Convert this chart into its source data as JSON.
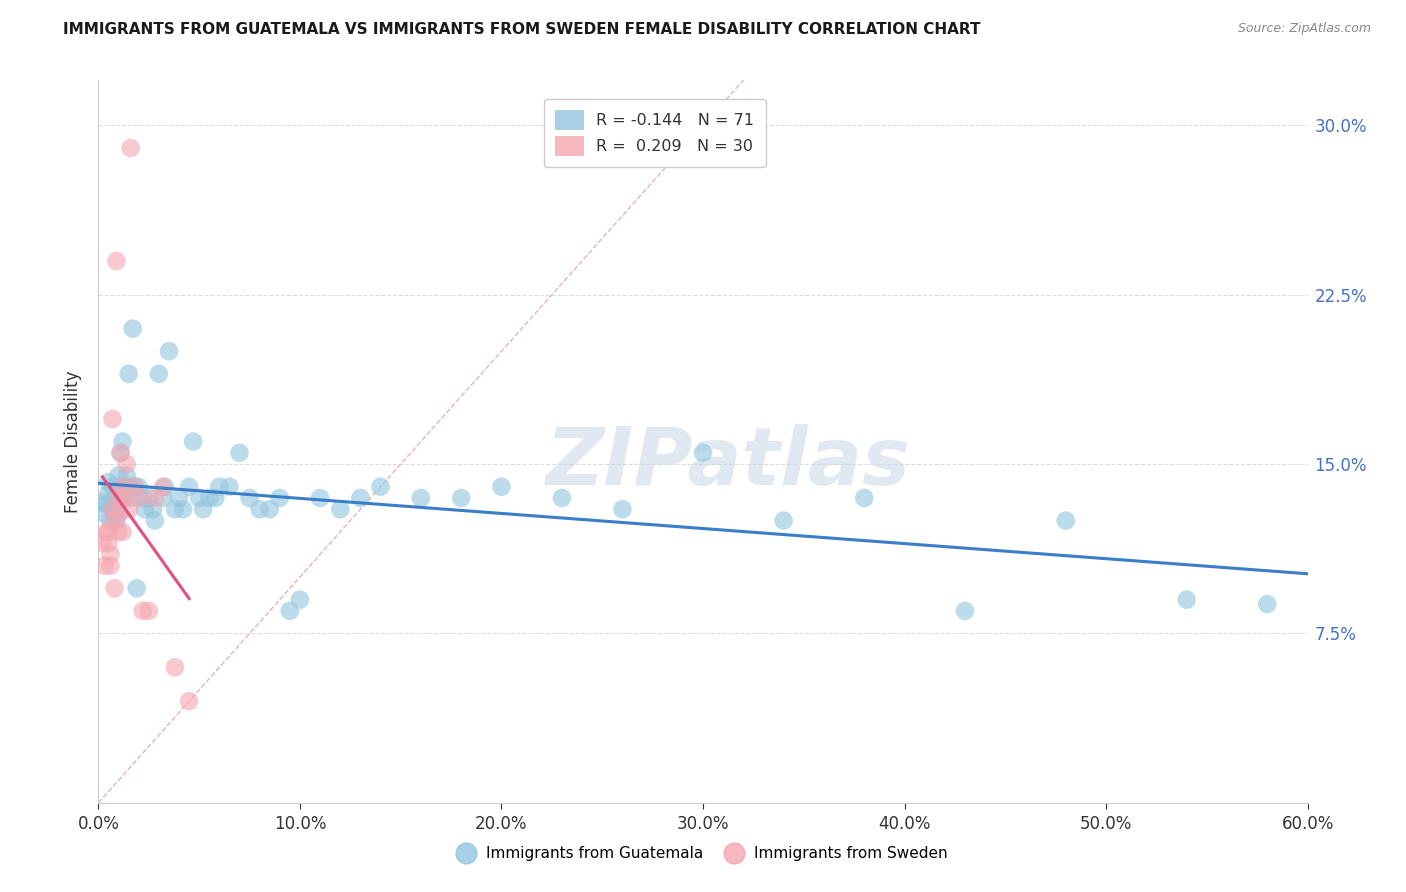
{
  "title": "IMMIGRANTS FROM GUATEMALA VS IMMIGRANTS FROM SWEDEN FEMALE DISABILITY CORRELATION CHART",
  "source": "Source: ZipAtlas.com",
  "ylabel": "Female Disability",
  "watermark": "ZIPatlas",
  "xlim": [
    0.0,
    0.6
  ],
  "ylim": [
    0.0,
    0.32
  ],
  "xticks": [
    0.0,
    0.1,
    0.2,
    0.3,
    0.4,
    0.5,
    0.6
  ],
  "yticks": [
    0.075,
    0.15,
    0.225,
    0.3
  ],
  "ytick_labels": [
    "7.5%",
    "15.0%",
    "22.5%",
    "30.0%"
  ],
  "xtick_labels": [
    "0.0%",
    "10.0%",
    "20.0%",
    "30.0%",
    "40.0%",
    "50.0%",
    "60.0%"
  ],
  "guatemala_color": "#92c5de",
  "sweden_color": "#f4a6b0",
  "trend_guatemala_color": "#3a7dc9",
  "trend_sweden_color": "#e05080",
  "diagonal_line_color": "#e8b4b8",
  "legend_R_guatemala": "-0.144",
  "legend_N_guatemala": "71",
  "legend_R_sweden": "0.209",
  "legend_N_sweden": "30",
  "guatemala_x": [
    0.002,
    0.003,
    0.004,
    0.005,
    0.005,
    0.006,
    0.007,
    0.007,
    0.008,
    0.008,
    0.009,
    0.009,
    0.01,
    0.01,
    0.01,
    0.011,
    0.012,
    0.012,
    0.013,
    0.013,
    0.014,
    0.015,
    0.015,
    0.016,
    0.017,
    0.018,
    0.019,
    0.02,
    0.022,
    0.023,
    0.025,
    0.027,
    0.028,
    0.03,
    0.032,
    0.033,
    0.035,
    0.038,
    0.04,
    0.042,
    0.045,
    0.047,
    0.05,
    0.052,
    0.055,
    0.058,
    0.06,
    0.065,
    0.07,
    0.075,
    0.08,
    0.085,
    0.09,
    0.095,
    0.1,
    0.11,
    0.12,
    0.13,
    0.14,
    0.16,
    0.18,
    0.2,
    0.23,
    0.26,
    0.3,
    0.34,
    0.38,
    0.43,
    0.48,
    0.54,
    0.58
  ],
  "guatemala_y": [
    0.133,
    0.128,
    0.132,
    0.137,
    0.142,
    0.125,
    0.14,
    0.132,
    0.135,
    0.128,
    0.13,
    0.125,
    0.14,
    0.145,
    0.128,
    0.155,
    0.135,
    0.16,
    0.14,
    0.135,
    0.145,
    0.14,
    0.19,
    0.135,
    0.21,
    0.14,
    0.095,
    0.14,
    0.135,
    0.13,
    0.135,
    0.13,
    0.125,
    0.19,
    0.135,
    0.14,
    0.2,
    0.13,
    0.135,
    0.13,
    0.14,
    0.16,
    0.135,
    0.13,
    0.135,
    0.135,
    0.14,
    0.14,
    0.155,
    0.135,
    0.13,
    0.13,
    0.135,
    0.085,
    0.09,
    0.135,
    0.13,
    0.135,
    0.14,
    0.135,
    0.135,
    0.14,
    0.135,
    0.13,
    0.155,
    0.125,
    0.135,
    0.085,
    0.125,
    0.09,
    0.088
  ],
  "sweden_x": [
    0.002,
    0.003,
    0.004,
    0.005,
    0.005,
    0.006,
    0.006,
    0.007,
    0.007,
    0.008,
    0.008,
    0.009,
    0.01,
    0.01,
    0.01,
    0.011,
    0.012,
    0.012,
    0.013,
    0.014,
    0.015,
    0.016,
    0.018,
    0.02,
    0.022,
    0.025,
    0.028,
    0.032,
    0.038,
    0.045
  ],
  "sweden_y": [
    0.115,
    0.105,
    0.12,
    0.12,
    0.115,
    0.11,
    0.105,
    0.17,
    0.13,
    0.125,
    0.095,
    0.24,
    0.135,
    0.128,
    0.12,
    0.155,
    0.14,
    0.12,
    0.135,
    0.15,
    0.13,
    0.29,
    0.14,
    0.135,
    0.085,
    0.085,
    0.135,
    0.14,
    0.06,
    0.045
  ]
}
